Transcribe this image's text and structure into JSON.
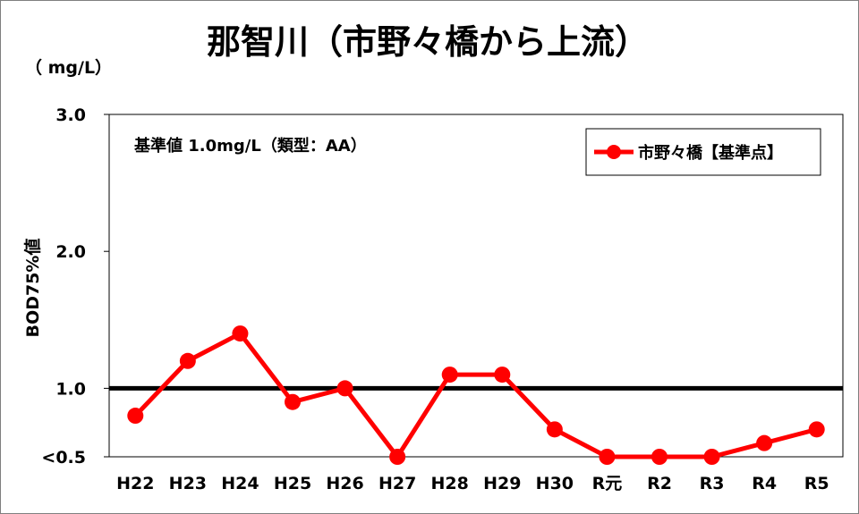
{
  "chart_data": {
    "type": "line",
    "title": "那智川（市野々橋から上流）",
    "unit": "（ mg/L）",
    "ylabel": "BOD75%値",
    "ylim": [
      0.5,
      3.0
    ],
    "yticks": [
      "<0.5",
      "1.0",
      "2.0",
      "3.0"
    ],
    "ytick_values": [
      0.5,
      1.0,
      2.0,
      3.0
    ],
    "categories": [
      "H22",
      "H23",
      "H24",
      "H25",
      "H26",
      "H27",
      "H28",
      "H29",
      "H30",
      "R元",
      "R2",
      "R3",
      "R4",
      "R5"
    ],
    "series": [
      {
        "name": "市野々橋【基準点】",
        "color": "#ff0000",
        "values": [
          0.8,
          1.2,
          1.4,
          0.9,
          1.0,
          0.5,
          1.1,
          1.1,
          0.7,
          0.5,
          0.5,
          0.5,
          0.6,
          0.7
        ]
      }
    ],
    "reference_line": {
      "value": 1.0,
      "color": "#000000"
    },
    "annotation": "基準値  1.0mg/L（類型：AA）",
    "grid": false,
    "legend_position": "top-right"
  }
}
